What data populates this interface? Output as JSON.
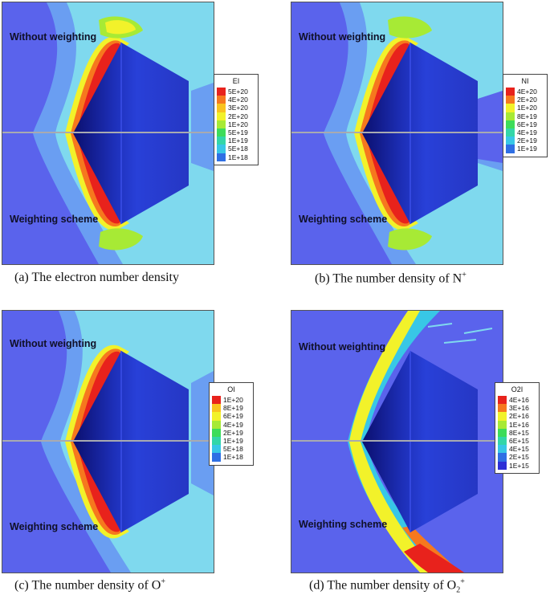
{
  "panels": [
    {
      "id": "a",
      "top_label": "Without weighting",
      "bottom_label": "Weighting scheme",
      "legend": {
        "title": "EI",
        "levels": [
          "5E+20",
          "4E+20",
          "3E+20",
          "2E+20",
          "1E+20",
          "5E+19",
          "1E+19",
          "5E+18",
          "1E+18"
        ]
      },
      "caption": {
        "text": "(a) The electron number density",
        "sup": "",
        "sub": ""
      }
    },
    {
      "id": "b",
      "top_label": "Without weighting",
      "bottom_label": "Weighting scheme",
      "legend": {
        "title": "NI",
        "levels": [
          "4E+20",
          "2E+20",
          "1E+20",
          "8E+19",
          "6E+19",
          "4E+19",
          "2E+19",
          "1E+19"
        ]
      },
      "caption": {
        "text": "(b) The number density of N",
        "sup": "+",
        "sub": ""
      }
    },
    {
      "id": "c",
      "top_label": "Without weighting",
      "bottom_label": "Weighting scheme",
      "legend": {
        "title": "OI",
        "levels": [
          "1E+20",
          "8E+19",
          "6E+19",
          "4E+19",
          "2E+19",
          "1E+19",
          "5E+18",
          "1E+18"
        ]
      },
      "caption": {
        "text": "(c) The number density of O",
        "sup": "+",
        "sub": ""
      }
    },
    {
      "id": "d",
      "top_label": "Without weighting",
      "bottom_label": "Weighting scheme",
      "legend": {
        "title": "O2I",
        "levels": [
          "4E+16",
          "3E+16",
          "2E+16",
          "1E+16",
          "8E+15",
          "6E+15",
          "4E+15",
          "2E+15",
          "1E+15"
        ]
      },
      "caption": {
        "text": "(d) The number density of O",
        "sup": "+",
        "sub": "2"
      }
    }
  ],
  "colors": {
    "background_field": "#5a63ec",
    "scale": [
      "#e8221c",
      "#f6781e",
      "#f9c31f",
      "#f2f22a",
      "#a7ea35",
      "#3ddc5a",
      "#33d6a8",
      "#38c7e6",
      "#2f6fe4",
      "#2d2fd6"
    ]
  }
}
